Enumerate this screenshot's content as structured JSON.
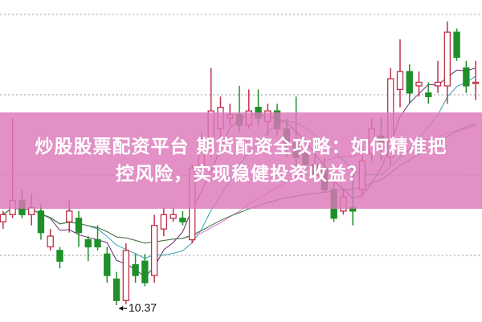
{
  "banner": {
    "line1": "炒股股票配资平台 期货配资全攻略：如何精准把",
    "line2": "控风险，实现稳健投资收益？"
  },
  "colors": {
    "up": "#c0304a",
    "down": "#1f8f2a",
    "ma": [
      "#6a2a6a",
      "#3aa0b0",
      "#e070d0",
      "#3a7a3a"
    ],
    "banner": "#dc78b9"
  },
  "chart_data": {
    "type": "candlestick",
    "grid": true,
    "ylim": [
      9.9,
      18.9
    ],
    "low_annotation": "10.37",
    "candles": [
      [
        12.7,
        12.9,
        13.0,
        12.5
      ],
      [
        12.9,
        13.3,
        15.6,
        12.8
      ],
      [
        13.3,
        12.9,
        13.6,
        12.8
      ],
      [
        12.9,
        13.1,
        13.5,
        12.6
      ],
      [
        13.0,
        12.4,
        13.2,
        12.2
      ],
      [
        12.0,
        12.3,
        12.5,
        11.9
      ],
      [
        11.9,
        11.6,
        12.0,
        11.4
      ],
      [
        12.7,
        13.0,
        13.3,
        12.4
      ],
      [
        12.8,
        12.4,
        13.0,
        12.0
      ],
      [
        12.2,
        12.0,
        12.3,
        11.6
      ],
      [
        12.2,
        12.0,
        12.6,
        11.9
      ],
      [
        11.8,
        11.2,
        12.0,
        11.0
      ],
      [
        11.1,
        10.5,
        11.3,
        10.37
      ],
      [
        10.5,
        11.9,
        12.1,
        10.4
      ],
      [
        11.5,
        11.2,
        11.8,
        11.0
      ],
      [
        11.6,
        11.0,
        11.8,
        10.9
      ],
      [
        11.2,
        12.6,
        12.9,
        11.0
      ],
      [
        12.5,
        12.9,
        13.1,
        12.3
      ],
      [
        12.8,
        12.9,
        13.1,
        12.7
      ],
      [
        12.8,
        12.7,
        13.0,
        12.6
      ],
      [
        12.2,
        14.2,
        14.3,
        12.1
      ],
      [
        14.2,
        15.0,
        15.2,
        14.0
      ],
      [
        14.8,
        15.8,
        17.0,
        14.5
      ],
      [
        15.3,
        15.9,
        16.2,
        15.0
      ],
      [
        15.6,
        15.7,
        16.0,
        15.4
      ],
      [
        15.7,
        15.4,
        16.5,
        15.2
      ],
      [
        15.4,
        15.8,
        16.4,
        15.3
      ],
      [
        15.9,
        15.6,
        16.4,
        15.4
      ],
      [
        15.5,
        15.8,
        16.0,
        15.1
      ],
      [
        15.8,
        15.3,
        16.0,
        15.1
      ],
      [
        15.3,
        14.9,
        15.6,
        14.5
      ],
      [
        14.9,
        14.5,
        16.2,
        14.2
      ],
      [
        14.6,
        14.3,
        14.8,
        14.0
      ],
      [
        14.3,
        14.0,
        14.6,
        13.8
      ],
      [
        14.2,
        13.6,
        14.5,
        13.5
      ],
      [
        13.6,
        12.8,
        13.8,
        12.7
      ],
      [
        13.0,
        13.4,
        13.6,
        12.9
      ],
      [
        13.1,
        13.0,
        14.2,
        12.6
      ],
      [
        13.6,
        14.4,
        14.8,
        13.4
      ],
      [
        14.6,
        15.3,
        15.6,
        14.4
      ],
      [
        15.1,
        14.9,
        15.6,
        14.4
      ],
      [
        14.5,
        16.7,
        17.0,
        14.3
      ],
      [
        16.4,
        16.9,
        17.8,
        15.9
      ],
      [
        16.9,
        16.3,
        17.1,
        16.0
      ],
      [
        16.5,
        16.6,
        16.9,
        16.2
      ],
      [
        16.3,
        16.2,
        16.6,
        16.0
      ],
      [
        16.5,
        16.6,
        17.2,
        16.3
      ],
      [
        16.5,
        18.0,
        18.3,
        16.0
      ],
      [
        18.0,
        17.3,
        18.1,
        17.2
      ],
      [
        17.0,
        16.5,
        17.2,
        16.3
      ],
      [
        16.6,
        16.6,
        17.2,
        16.1
      ]
    ]
  }
}
